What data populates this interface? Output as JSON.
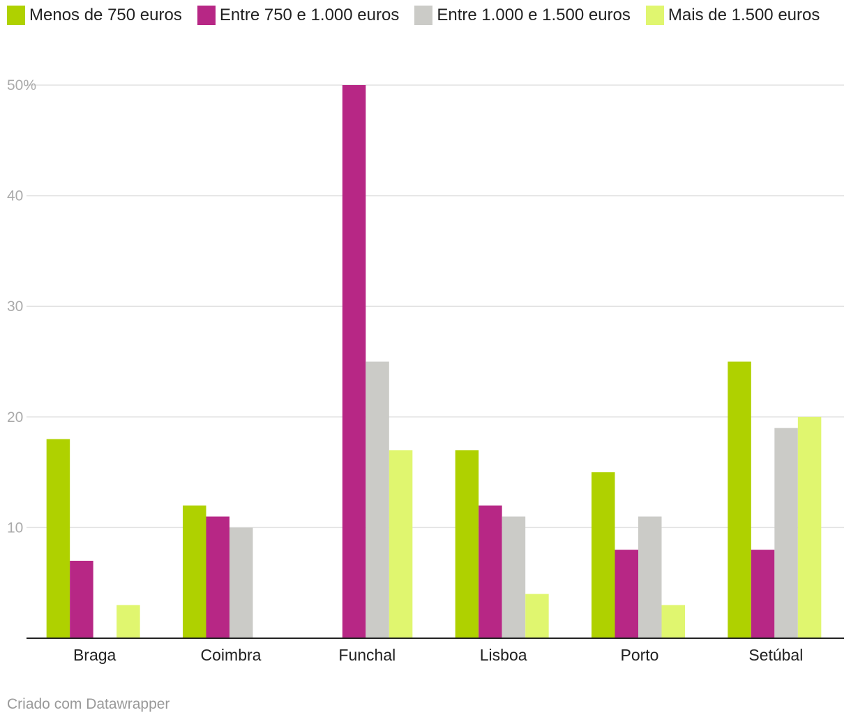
{
  "chart_data": {
    "type": "bar",
    "categories": [
      "Braga",
      "Coimbra",
      "Funchal",
      "Lisboa",
      "Porto",
      "Setúbal"
    ],
    "series": [
      {
        "name": "Menos de 750 euros",
        "color": "#afd100",
        "values": [
          18,
          12,
          0,
          17,
          15,
          25
        ]
      },
      {
        "name": "Entre 750 e 1.000 euros",
        "color": "#b72785",
        "values": [
          7,
          11,
          50,
          12,
          8,
          8
        ]
      },
      {
        "name": "Entre 1.000 e 1.500 euros",
        "color": "#cbcbc7",
        "values": [
          0,
          10,
          25,
          11,
          11,
          19
        ]
      },
      {
        "name": "Mais de 1.500 euros",
        "color": "#e0f66f",
        "values": [
          3,
          0,
          17,
          4,
          3,
          20
        ]
      }
    ],
    "y_ticks": [
      {
        "value": 10,
        "label": "10"
      },
      {
        "value": 20,
        "label": "20"
      },
      {
        "value": 30,
        "label": "30"
      },
      {
        "value": 40,
        "label": "40"
      },
      {
        "value": 50,
        "label": "50%"
      }
    ],
    "ylim": [
      0,
      50
    ],
    "grid": true,
    "legend_position": "top-left",
    "title": "",
    "xlabel": "",
    "ylabel": ""
  },
  "footer": {
    "credit": "Criado com Datawrapper"
  }
}
